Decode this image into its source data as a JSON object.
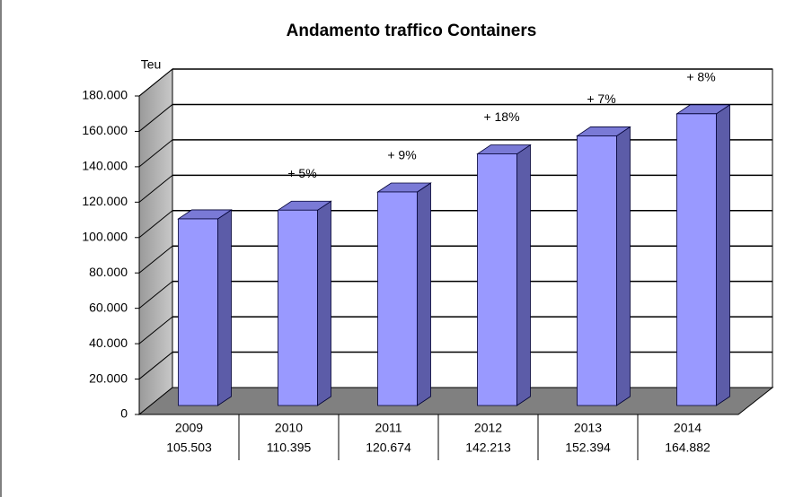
{
  "chart_data": {
    "type": "bar3d",
    "title": "Andamento traffico Containers",
    "y_label": "Teu",
    "categories": [
      "2009",
      "2010",
      "2011",
      "2012",
      "2013",
      "2014"
    ],
    "values": [
      105503,
      110395,
      120674,
      142213,
      152394,
      164882
    ],
    "value_labels": [
      "105.503",
      "110.395",
      "120.674",
      "142.213",
      "152.394",
      "164.882"
    ],
    "growth_labels": [
      null,
      "+ 5%",
      "+ 9%",
      "+ 18%",
      "+ 7%",
      "+ 8%"
    ],
    "color": "#9999ff",
    "ylim": [
      0,
      180000
    ],
    "yticks": [
      0,
      {
        "value": 20000,
        "label": "20.000"
      },
      {
        "value": 40000,
        "label": "40.000"
      },
      {
        "value": 60000,
        "label": "60.000"
      },
      {
        "value": 80000,
        "label": "80.000"
      },
      {
        "value": 100000,
        "label": "100.000"
      },
      {
        "value": 120000,
        "label": "120.000"
      },
      {
        "value": 140000,
        "label": "140.000"
      },
      {
        "value": 160000,
        "label": "160.000"
      },
      {
        "value": 180000,
        "label": "180.000"
      }
    ],
    "grid": true
  }
}
